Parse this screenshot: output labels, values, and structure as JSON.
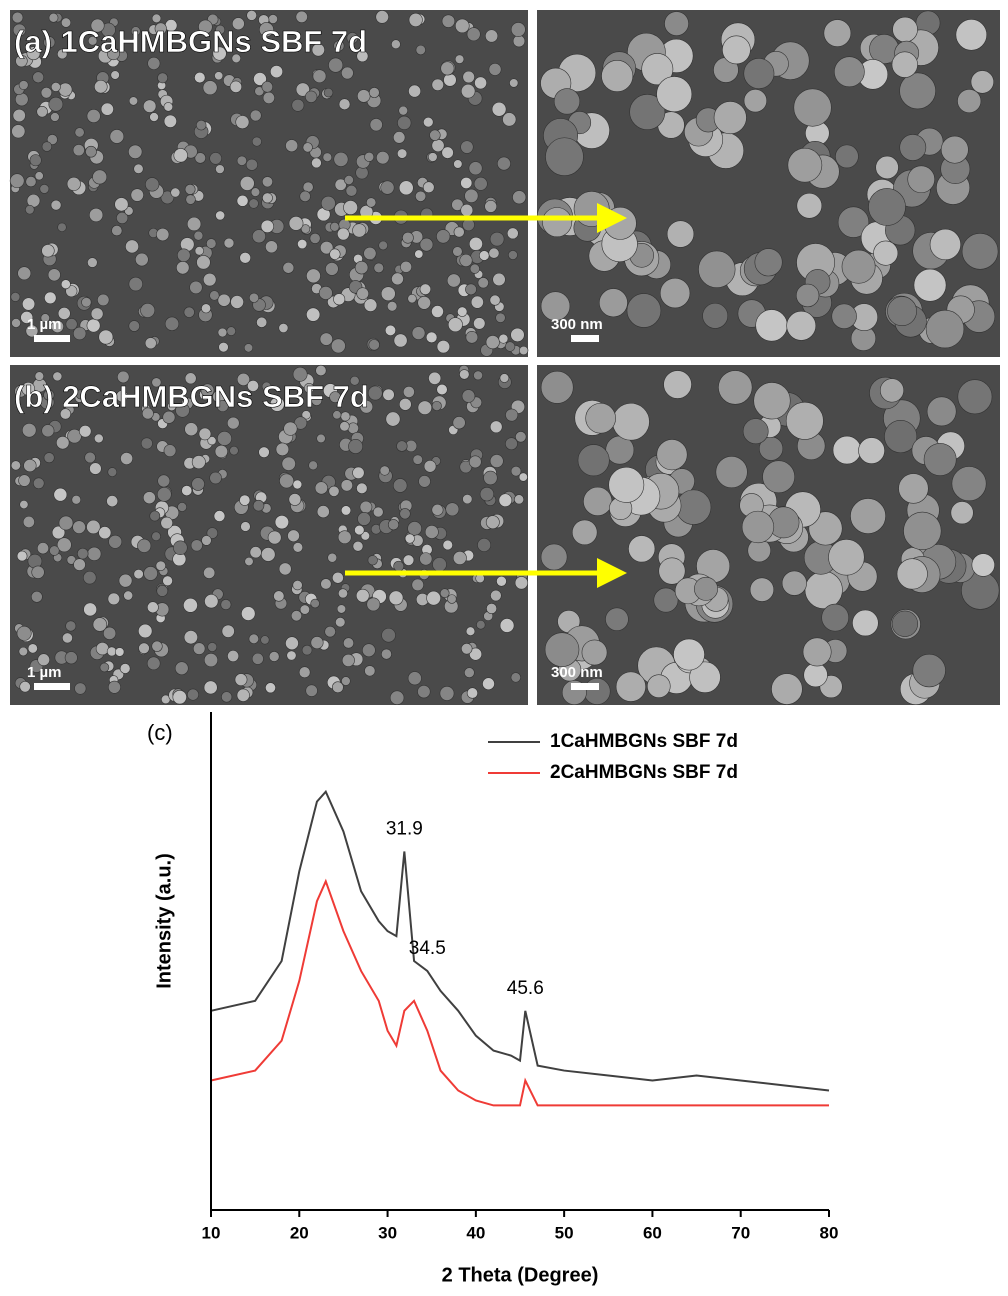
{
  "panels": [
    {
      "label": "(a) 1CaHMBGNs SBF 7d",
      "scale_left": "1 µm",
      "scale_right": "300 nm"
    },
    {
      "label": "(b) 2CaHMBGNs SBF 7d",
      "scale_left": "1 µm",
      "scale_right": "300 nm"
    }
  ],
  "chart_data": {
    "type": "line",
    "panel_label": "(c)",
    "x_label": "2 Theta (Degree)",
    "y_label": "Intensity (a.u.)",
    "x": [
      10,
      15,
      18,
      20,
      22,
      23,
      25,
      27,
      29,
      30,
      31,
      31.9,
      33,
      34.5,
      36,
      38,
      40,
      42,
      44,
      45,
      45.6,
      47,
      50,
      55,
      60,
      65,
      70,
      75,
      80
    ],
    "series": [
      {
        "name": "1CaHMBGNs SBF 7d",
        "color": "#404040",
        "values": [
          40,
          42,
          50,
          68,
          82,
          84,
          76,
          64,
          58,
          56,
          55,
          72,
          50,
          48,
          44,
          40,
          35,
          32,
          31,
          30,
          40,
          29,
          28,
          27,
          26,
          27,
          26,
          25,
          24
        ]
      },
      {
        "name": "2CaHMBGNs SBF 7d",
        "color": "#ef3b36",
        "values": [
          26,
          28,
          34,
          46,
          62,
          66,
          56,
          48,
          42,
          36,
          33,
          40,
          42,
          36,
          28,
          24,
          22,
          21,
          21,
          21,
          26,
          21,
          21,
          21,
          21,
          21,
          21,
          21,
          21
        ]
      }
    ],
    "annotations": [
      {
        "text": "31.9",
        "x": 31.9,
        "y": 72
      },
      {
        "text": "34.5",
        "x": 34.5,
        "y": 48
      },
      {
        "text": "45.6",
        "x": 45.6,
        "y": 40
      }
    ],
    "xlim": [
      10,
      80
    ],
    "xticks": [
      10,
      20,
      30,
      40,
      50,
      60,
      70,
      80
    ],
    "ylim": [
      0,
      100
    ],
    "legend": "upper right"
  }
}
